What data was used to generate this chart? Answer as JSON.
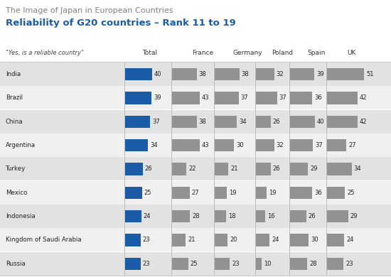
{
  "title_top": "The Image of Japan in European Countries",
  "title_main": "Reliability of G20 countries – Rank 11 to 19",
  "header_label": "\"Yes, is a reliable country\"",
  "columns": [
    "Total",
    "France",
    "Germany",
    "Poland",
    "Spain",
    "UK"
  ],
  "countries": [
    "India",
    "Brazil",
    "China",
    "Argentina",
    "Turkey",
    "Mexico",
    "Indonesia",
    "Kingdom of Saudi Arabia",
    "Russia"
  ],
  "values": [
    [
      40,
      38,
      38,
      32,
      39,
      51
    ],
    [
      39,
      43,
      37,
      37,
      36,
      42
    ],
    [
      37,
      38,
      34,
      26,
      40,
      42
    ],
    [
      34,
      43,
      30,
      32,
      37,
      27
    ],
    [
      26,
      22,
      21,
      26,
      29,
      34
    ],
    [
      25,
      27,
      19,
      19,
      36,
      25
    ],
    [
      24,
      28,
      18,
      16,
      26,
      29
    ],
    [
      23,
      21,
      20,
      24,
      30,
      24
    ],
    [
      23,
      25,
      23,
      10,
      28,
      23
    ]
  ],
  "total_color": "#1a5ca8",
  "other_color": "#929292",
  "bg_color_odd": "#e2e2e2",
  "bg_color_even": "#f0f0f0",
  "title_top_color": "#808080",
  "title_main_color": "#1a5ca8",
  "bar_max_scale": 55,
  "fig_width": 5.5,
  "fig_height": 3.9,
  "dpi": 100
}
